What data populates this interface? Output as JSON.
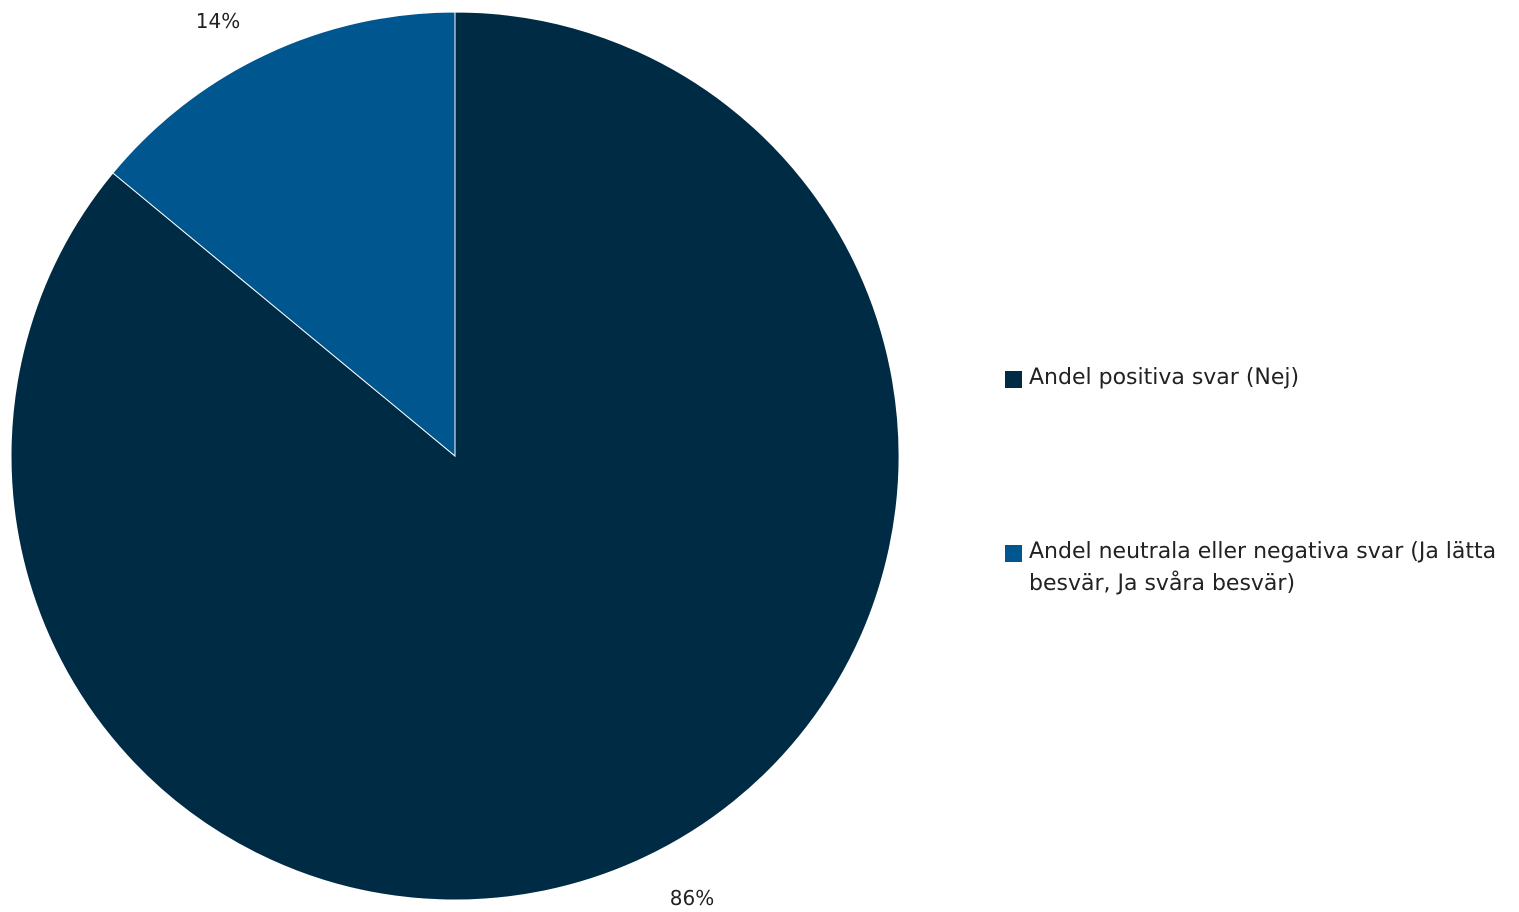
{
  "chart_data": {
    "type": "pie",
    "title": "",
    "categories": [
      "Andel positiva svar (Nej)",
      "Andel neutrala eller negativa svar (Ja lätta besvär, Ja svåra besvär)"
    ],
    "values": [
      86,
      14
    ],
    "data_labels": [
      "86%",
      "14%"
    ],
    "colors": [
      "#002b45",
      "#00568f"
    ],
    "legend": {
      "placement": "right",
      "entries": [
        "Andel positiva svar (Nej)",
        "Andel neutrala eller negativa svar (Ja lätta besvär, Ja svåra besvär)"
      ]
    }
  }
}
